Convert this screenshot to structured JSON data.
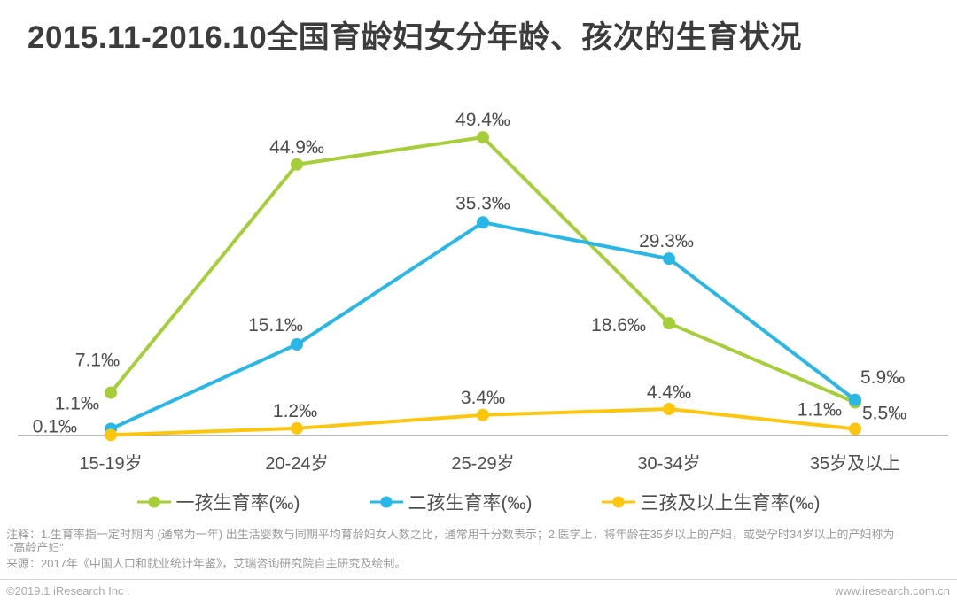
{
  "title": "2015.11-2016.10全国育龄妇女分年龄、孩次的生育状况",
  "chart_data": {
    "type": "line",
    "categories": [
      "15-19岁",
      "20-24岁",
      "25-29岁",
      "30-34岁",
      "35岁及以上"
    ],
    "series": [
      {
        "id": "first-child-rate",
        "name": "一孩生育率(‰)",
        "color": "#a6ce38",
        "values": [
          7.1,
          44.9,
          49.4,
          18.6,
          5.5
        ]
      },
      {
        "id": "second-child-rate",
        "name": "二孩生育率(‰)",
        "color": "#29b7e8",
        "values": [
          1.1,
          15.1,
          35.3,
          29.3,
          5.9
        ]
      },
      {
        "id": "third-plus-rate",
        "name": "三孩及以上生育率(‰)",
        "color": "#fdc60e",
        "values": [
          0.1,
          1.2,
          3.4,
          4.4,
          1.1
        ]
      }
    ],
    "unit": "‰",
    "ylim": [
      0,
      55
    ],
    "grid": false,
    "legend_position": "bottom",
    "axis_color": "#909090",
    "label_color": "#4c4c4c"
  },
  "notes": {
    "line1": "注释：1.生育率指一定时期内 (通常为一年) 出生活婴数与同期平均育龄妇女人数之比，通常用千分数表示；2.医学上，将年龄在35岁以上的产妇，或受孕时34岁以上的产妇称为",
    "line2": "“高龄产妇”",
    "source": "来源：2017年《中国人口和就业统计年鉴》，艾瑞咨询研究院自主研究及绘制。"
  },
  "footer": {
    "left": "©2019.1 iResearch Inc .",
    "right": "www.iresearch.com.cn"
  }
}
